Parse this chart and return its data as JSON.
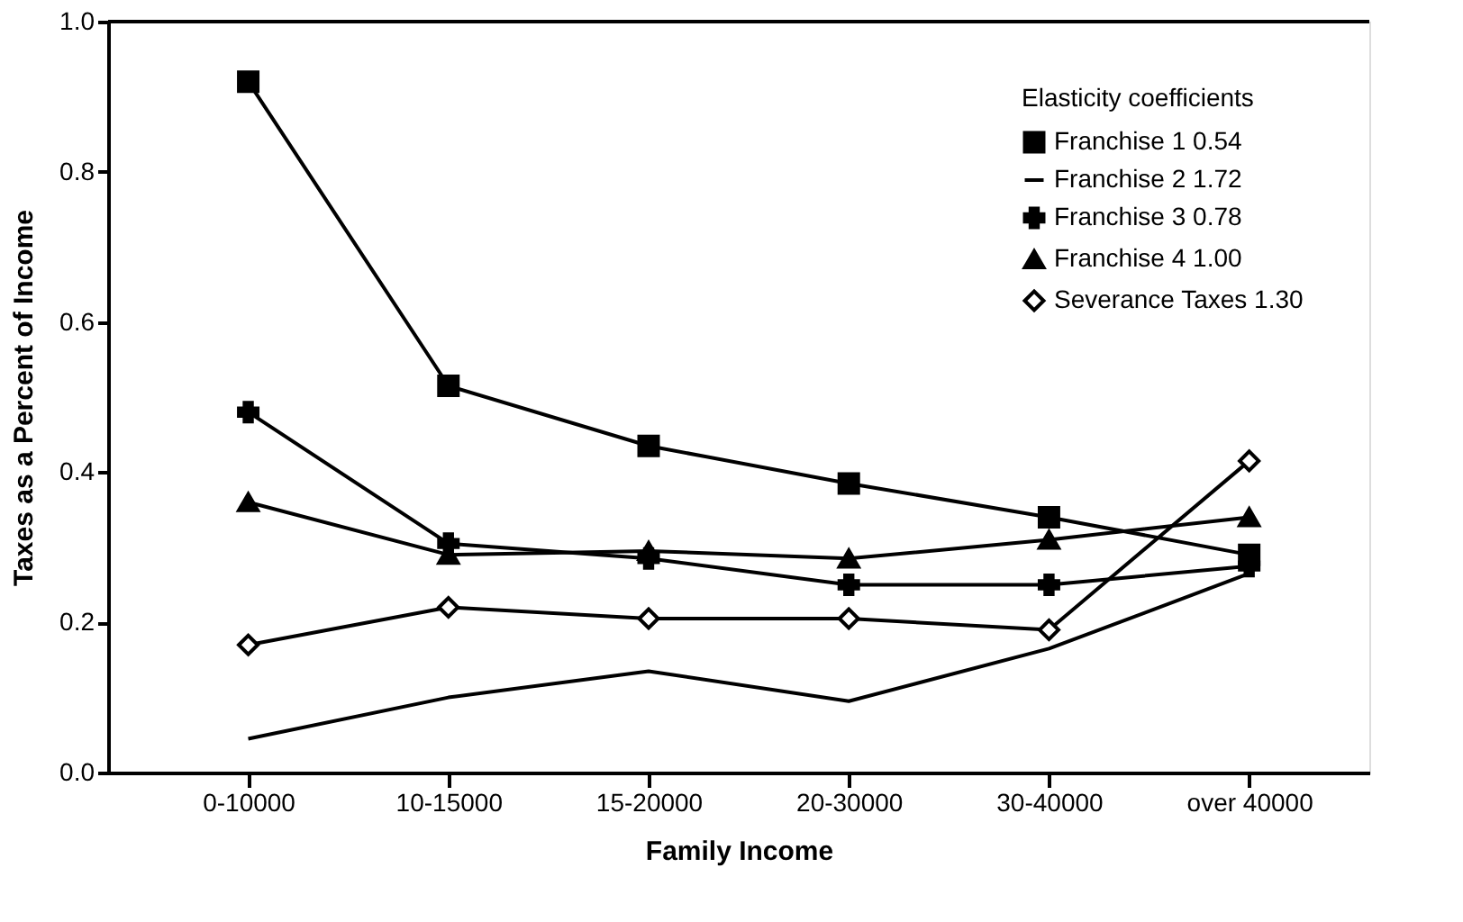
{
  "chart_data": {
    "type": "line",
    "xlabel": "Family Income",
    "ylabel": "Taxes as a Percent of Income",
    "legend_title": "Elasticity coefficients",
    "categories": [
      "0-10000",
      "10-15000",
      "15-20000",
      "20-30000",
      "30-40000",
      "over 40000"
    ],
    "series": [
      {
        "name": "Franchise 1 0.54",
        "color": "#000000",
        "marker": "square",
        "values": [
          0.92,
          0.515,
          0.435,
          0.385,
          0.34,
          0.29
        ]
      },
      {
        "name": "Franchise 2 1.72",
        "color": "#000000",
        "marker": "none",
        "values": [
          0.045,
          0.1,
          0.135,
          0.095,
          0.165,
          0.265
        ]
      },
      {
        "name": "Franchise 3 0.78",
        "color": "#000000",
        "marker": "cross",
        "values": [
          0.48,
          0.305,
          0.285,
          0.25,
          0.25,
          0.275
        ]
      },
      {
        "name": "Franchise 4 1.00",
        "color": "#000000",
        "marker": "triangle",
        "values": [
          0.36,
          0.29,
          0.295,
          0.285,
          0.31,
          0.34
        ]
      },
      {
        "name": "Severance Taxes 1.30",
        "color": "#000000",
        "marker": "diamond",
        "values": [
          0.17,
          0.22,
          0.205,
          0.205,
          0.19,
          0.415
        ]
      }
    ],
    "ylim": [
      0,
      1
    ],
    "yticks": [
      {
        "value": 0,
        "label": "0.0"
      },
      0.2,
      0.4,
      0.6,
      0.8,
      {
        "value": 1,
        "label": "1.0"
      }
    ],
    "grid": false,
    "legend": "top right",
    "line_style": "solid"
  }
}
